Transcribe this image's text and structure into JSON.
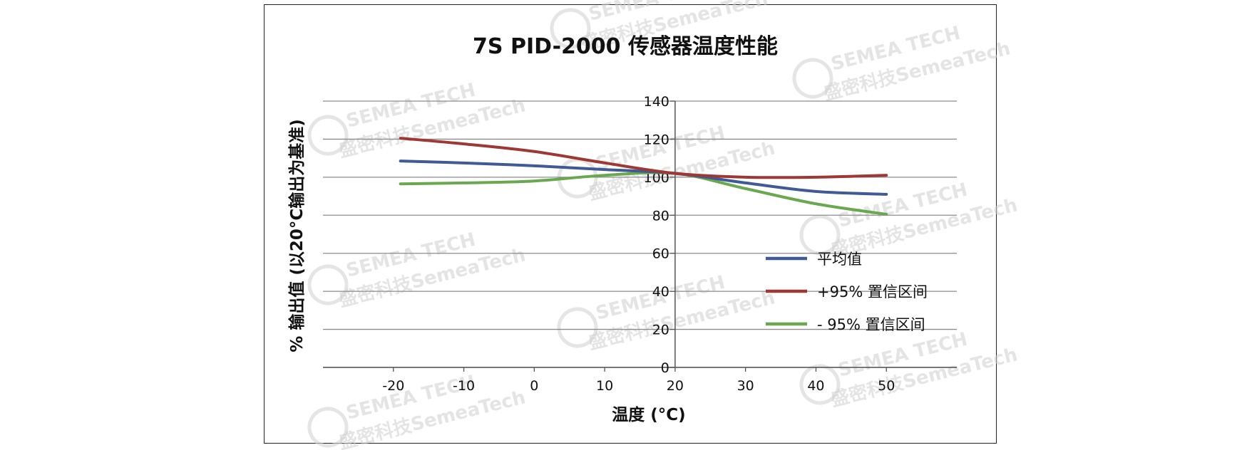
{
  "chart_data": {
    "type": "line",
    "title": "7S PID-2000 传感器温度性能",
    "xlabel": "温度 (°C)",
    "ylabel": "% 输出值 (以20°C输出为基准)",
    "xlim": [
      -30,
      60
    ],
    "ylim": [
      0,
      140
    ],
    "x_ticks": [
      -20,
      -10,
      0,
      10,
      20,
      30,
      40,
      50
    ],
    "y_ticks": [
      0,
      20,
      40,
      60,
      80,
      100,
      120,
      140
    ],
    "grid": true,
    "legend_position": "right",
    "series": [
      {
        "name": "平均值",
        "color": "#3f5a94",
        "x": [
          -19,
          -10,
          0,
          10,
          20,
          30,
          40,
          50
        ],
        "y": [
          108.5,
          107.5,
          106,
          104,
          102,
          97,
          92.5,
          91
        ]
      },
      {
        "name": "+95% 置信区间",
        "color": "#9e3834",
        "x": [
          -19,
          -10,
          0,
          10,
          20,
          30,
          40,
          50
        ],
        "y": [
          120.5,
          117.5,
          113.5,
          107.5,
          102,
          100,
          100,
          101
        ]
      },
      {
        "name": "- 95% 置信区间",
        "color": "#6aa84f",
        "x": [
          -19,
          -10,
          0,
          10,
          20,
          30,
          40,
          50
        ],
        "y": [
          96.5,
          97,
          98,
          101,
          102,
          94,
          86,
          80.5
        ]
      }
    ]
  },
  "watermark": {
    "logo_text": "SEMEA TECH",
    "text": "盛密科技SemeaTech"
  }
}
